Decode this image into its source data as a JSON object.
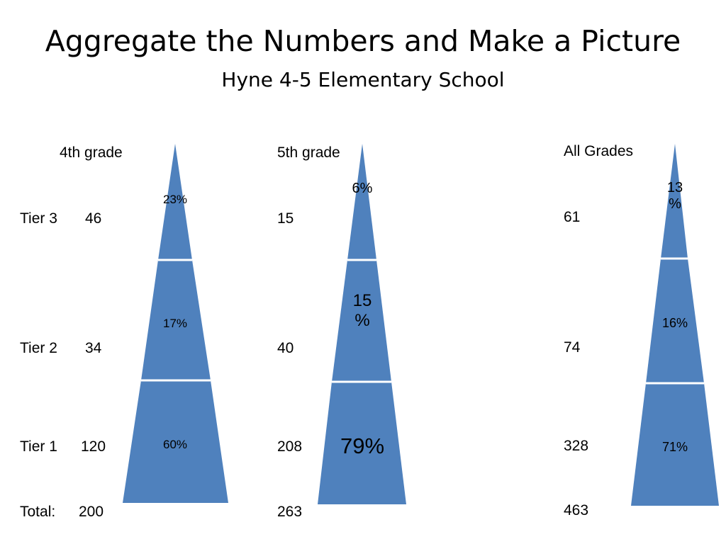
{
  "title": "Aggregate the Numbers and Make a Picture",
  "subtitle": "Hyne 4-5 Elementary School",
  "row_labels": {
    "tier3": "Tier 3",
    "tier2": "Tier 2",
    "tier1": "Tier 1",
    "total": "Total:"
  },
  "columns": [
    {
      "heading": "4th grade",
      "counts": {
        "tier3": "46",
        "tier2": "34",
        "tier1": "120",
        "total": "200"
      },
      "percents": {
        "tier3": "23%",
        "tier2": "17%",
        "tier1": "60%"
      }
    },
    {
      "heading": "5th grade",
      "counts": {
        "tier3": "15",
        "tier2": "40",
        "tier1": "208",
        "total": "263"
      },
      "percents": {
        "tier3": "6%",
        "tier2": "15 %",
        "tier1": "79%"
      }
    },
    {
      "heading": "All Grades",
      "counts": {
        "tier3": "61",
        "tier2": "74",
        "tier1": "328",
        "total": "463"
      },
      "percents": {
        "tier3": "13 %",
        "tier2": "16%",
        "tier1": "71%"
      }
    }
  ],
  "colors": {
    "pyramid_fill": "#4F81BD",
    "divider": "#FFFFFF"
  }
}
